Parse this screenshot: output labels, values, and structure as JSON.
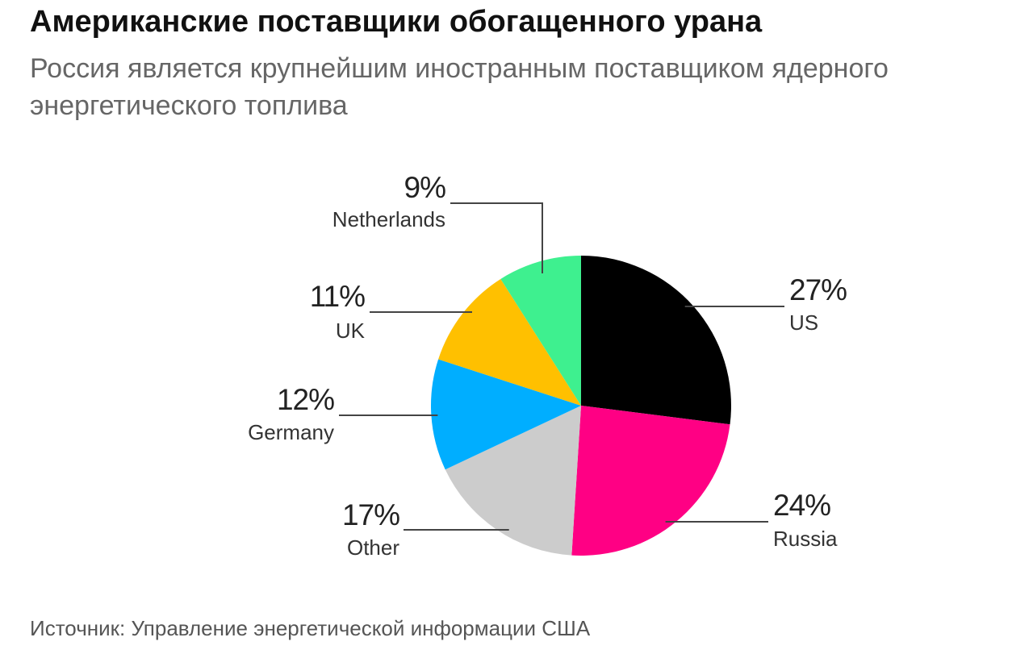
{
  "header": {
    "title": "Американские поставщики обогащенного урана",
    "subtitle": "Россия является крупнейшим иностранным поставщиком ядерного энергетического топлива"
  },
  "footer": {
    "source": "Источник: Управление энергетической информации США"
  },
  "chart_data": {
    "type": "pie",
    "title": "Американские поставщики обогащенного урана",
    "start": "12 o'clock",
    "direction": "clockwise",
    "slices": [
      {
        "label": "US",
        "value": 27,
        "value_label": "27%",
        "color": "#000000"
      },
      {
        "label": "Russia",
        "value": 24,
        "value_label": "24%",
        "color": "#ff0084"
      },
      {
        "label": "Other",
        "value": 17,
        "value_label": "17%",
        "color": "#cccccc"
      },
      {
        "label": "Germany",
        "value": 12,
        "value_label": "12%",
        "color": "#00aeff"
      },
      {
        "label": "UK",
        "value": 11,
        "value_label": "11%",
        "color": "#ffc000"
      },
      {
        "label": "Netherlands",
        "value": 9,
        "value_label": "9%",
        "color": "#3ef08f"
      }
    ]
  }
}
